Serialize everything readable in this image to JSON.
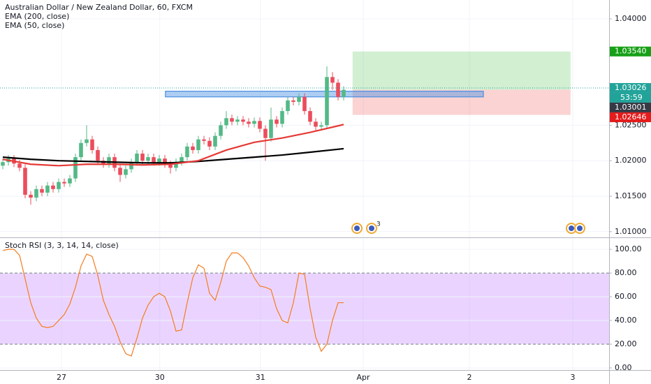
{
  "chart_data": [
    {
      "type": "candlestick",
      "title": "Australian Dollar / New Zealand Dollar, 60, FXCM",
      "xlim": [
        -0.5,
        108.5
      ],
      "ylim": [
        1.00919,
        1.04266
      ],
      "grid": true,
      "up_color": "#53b987",
      "down_color": "#eb4d5c",
      "xticks": [
        {
          "value": 10.5,
          "label": "27"
        },
        {
          "value": 28.1,
          "label": "30"
        },
        {
          "value": 46.1,
          "label": "31"
        },
        {
          "value": 64.5,
          "label": "Apr"
        },
        {
          "value": 83.5,
          "label": "2"
        },
        {
          "value": 102,
          "label": "3"
        }
      ],
      "yticks": [
        {
          "value": 1.04,
          "label": "1.04000"
        },
        {
          "value": 1.025,
          "label": "1.02500"
        },
        {
          "value": 1.02,
          "label": "1.02000"
        },
        {
          "value": 1.015,
          "label": "1.01500"
        },
        {
          "value": 1.01,
          "label": "1.01000"
        }
      ],
      "x": [
        0,
        1,
        2,
        3,
        4,
        5,
        6,
        7,
        8,
        9,
        10,
        11,
        12,
        13,
        14,
        15,
        16,
        17,
        18,
        19,
        20,
        21,
        22,
        23,
        24,
        25,
        26,
        27,
        28,
        29,
        30,
        31,
        32,
        33,
        34,
        35,
        36,
        37,
        38,
        39,
        40,
        41,
        42,
        43,
        44,
        45,
        46,
        47,
        48,
        49,
        50,
        51,
        52,
        53,
        54,
        55,
        56,
        57,
        58,
        59,
        60,
        61
      ],
      "open": [
        1.0193,
        1.0198,
        1.0203,
        1.0196,
        1.019,
        1.0152,
        1.0148,
        1.016,
        1.0155,
        1.0165,
        1.016,
        1.017,
        1.0168,
        1.0175,
        1.0205,
        1.0225,
        1.023,
        1.0215,
        1.02,
        1.0195,
        1.0205,
        1.019,
        1.018,
        1.0188,
        1.0198,
        1.021,
        1.02,
        1.0205,
        1.0198,
        1.0203,
        1.0195,
        1.019,
        1.0198,
        1.0205,
        1.022,
        1.0215,
        1.023,
        1.0228,
        1.022,
        1.0235,
        1.025,
        1.026,
        1.0255,
        1.0258,
        1.0255,
        1.0252,
        1.0256,
        1.0245,
        1.0232,
        1.0258,
        1.0252,
        1.027,
        1.0285,
        1.0283,
        1.029,
        1.027,
        1.0255,
        1.0248,
        1.025,
        1.0318,
        1.031,
        1.029
      ],
      "high": [
        1.0203,
        1.0208,
        1.0208,
        1.0201,
        1.0195,
        1.0157,
        1.0165,
        1.0165,
        1.017,
        1.017,
        1.0175,
        1.0175,
        1.018,
        1.021,
        1.023,
        1.025,
        1.0235,
        1.022,
        1.0205,
        1.021,
        1.021,
        1.0195,
        1.0193,
        1.0203,
        1.0215,
        1.0215,
        1.021,
        1.021,
        1.0208,
        1.0208,
        1.02,
        1.0203,
        1.021,
        1.0225,
        1.0225,
        1.0235,
        1.0235,
        1.0233,
        1.024,
        1.0255,
        1.027,
        1.0265,
        1.0263,
        1.0263,
        1.026,
        1.0261,
        1.0261,
        1.025,
        1.0275,
        1.0263,
        1.0275,
        1.029,
        1.029,
        1.0295,
        1.0295,
        1.0275,
        1.026,
        1.0255,
        1.0333,
        1.0325,
        1.0315,
        1.0305
      ],
      "low": [
        1.0188,
        1.0193,
        1.0191,
        1.0185,
        1.0147,
        1.0138,
        1.0143,
        1.015,
        1.015,
        1.0155,
        1.0155,
        1.0163,
        1.0163,
        1.017,
        1.02,
        1.022,
        1.021,
        1.0195,
        1.019,
        1.019,
        1.0185,
        1.017,
        1.0175,
        1.0183,
        1.0193,
        1.0195,
        1.0195,
        1.0193,
        1.0193,
        1.019,
        1.0182,
        1.0185,
        1.0193,
        1.02,
        1.021,
        1.021,
        1.0223,
        1.0215,
        1.0215,
        1.023,
        1.0245,
        1.025,
        1.025,
        1.025,
        1.0247,
        1.0247,
        1.024,
        1.02,
        1.0227,
        1.0247,
        1.0247,
        1.0265,
        1.0278,
        1.0278,
        1.0265,
        1.025,
        1.0243,
        1.0243,
        1.0245,
        1.03,
        1.0285,
        1.0285
      ],
      "close": [
        1.0198,
        1.0203,
        1.0196,
        1.019,
        1.0152,
        1.0148,
        1.016,
        1.0155,
        1.0165,
        1.016,
        1.017,
        1.0168,
        1.0175,
        1.0205,
        1.0225,
        1.023,
        1.0215,
        1.02,
        1.0195,
        1.0205,
        1.019,
        1.018,
        1.0188,
        1.0198,
        1.021,
        1.02,
        1.0205,
        1.0198,
        1.0203,
        1.0195,
        1.019,
        1.0198,
        1.0205,
        1.022,
        1.0215,
        1.023,
        1.0228,
        1.022,
        1.0235,
        1.025,
        1.026,
        1.0255,
        1.0258,
        1.0255,
        1.0252,
        1.0256,
        1.0245,
        1.0232,
        1.0258,
        1.0252,
        1.027,
        1.0285,
        1.0283,
        1.029,
        1.027,
        1.0255,
        1.0248,
        1.025,
        1.0318,
        1.031,
        1.029,
        1.03
      ],
      "series": [
        {
          "name": "EMA (200, close)",
          "color": "#000000",
          "x": [
            0,
            5,
            10,
            15,
            20,
            25,
            30,
            35,
            40,
            45,
            50,
            55,
            61
          ],
          "values": [
            1.0205,
            1.0202,
            1.02,
            1.0199,
            1.0198,
            1.0197,
            1.0197,
            1.0199,
            1.0202,
            1.0205,
            1.0208,
            1.0212,
            1.0217
          ]
        },
        {
          "name": "EMA (50, close)",
          "color": "#e53935",
          "x": [
            0,
            5,
            10,
            15,
            20,
            25,
            30,
            35,
            40,
            45,
            50,
            55,
            61
          ],
          "values": [
            1.0202,
            1.0195,
            1.0193,
            1.0195,
            1.0195,
            1.0194,
            1.0195,
            1.02,
            1.0215,
            1.0226,
            1.0232,
            1.024,
            1.0251
          ]
        }
      ],
      "zone": {
        "x": [
          29.1,
          86
        ],
        "y": [
          1.029,
          1.0298
        ],
        "color": "#4a90e2"
      },
      "position": {
        "x": [
          62.6,
          101.6
        ],
        "target": 1.0354,
        "entry": 1.03001,
        "stop": 1.02646
      },
      "price_tags": [
        {
          "value": 1.0354,
          "label": "1.03540",
          "color": "#17a017"
        },
        {
          "value": 1.03026,
          "label": "1.03026",
          "color": "#22a39a"
        },
        {
          "value": 1.03001,
          "label": "1.03001",
          "color": "#363a45"
        },
        {
          "value": 1.02646,
          "label": "1.02646",
          "color": "#e41c1c"
        }
      ],
      "countdown": "53:59",
      "annotations": [
        "3"
      ]
    },
    {
      "type": "line",
      "title": "Stoch RSI (3, 3, 14, 14, close)",
      "xlim": [
        -0.5,
        108.5
      ],
      "ylim": [
        -1.8,
        109.5
      ],
      "band": [
        20,
        80
      ],
      "color": "#f57c1f",
      "yticks": [
        {
          "value": 100,
          "label": "100.00"
        },
        {
          "value": 80,
          "label": "80.00"
        },
        {
          "value": 60,
          "label": "60.00"
        },
        {
          "value": 40,
          "label": "40.00"
        },
        {
          "value": 20,
          "label": "20.00"
        },
        {
          "value": 0,
          "label": "0.00"
        }
      ],
      "x": [
        0,
        1,
        2,
        3,
        4,
        5,
        6,
        7,
        8,
        9,
        10,
        11,
        12,
        13,
        14,
        15,
        16,
        17,
        18,
        19,
        20,
        21,
        22,
        23,
        24,
        25,
        26,
        27,
        28,
        29,
        30,
        31,
        32,
        33,
        34,
        35,
        36,
        37,
        38,
        39,
        40,
        41,
        42,
        43,
        44,
        45,
        46,
        47,
        48,
        49,
        50,
        51,
        52,
        53,
        54,
        55,
        56,
        57,
        58,
        59,
        60,
        61
      ],
      "values": [
        99,
        100,
        100,
        95,
        75,
        55,
        42,
        35,
        34,
        35,
        40,
        45,
        54,
        68,
        86,
        96,
        94,
        78,
        57,
        45,
        35,
        22,
        12,
        10,
        25,
        42,
        53,
        60,
        63,
        60,
        48,
        31,
        32,
        55,
        76,
        87,
        84,
        63,
        57,
        72,
        90,
        97,
        97,
        93,
        86,
        76,
        69,
        68,
        66,
        50,
        40,
        38,
        55,
        80,
        79,
        50,
        26,
        14,
        20,
        40,
        55,
        55
      ]
    }
  ]
}
